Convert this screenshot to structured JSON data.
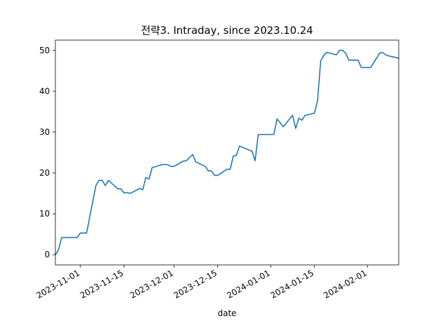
{
  "chart_data": {
    "type": "line",
    "title": "전략3. Intraday, since 2023.10.24",
    "xlabel": "date",
    "ylabel": "",
    "xlim": [
      "2023-10-24",
      "2024-02-11"
    ],
    "ylim": [
      -2.5,
      52.5
    ],
    "grid": false,
    "line_color": "#1f77b4",
    "x_ticks": [
      "2023-11-01",
      "2023-11-15",
      "2023-12-01",
      "2023-12-15",
      "2024-01-01",
      "2024-01-15",
      "2024-02-01"
    ],
    "y_ticks": [
      0,
      10,
      20,
      30,
      40,
      50
    ],
    "series": [
      {
        "x": [
          "2023-10-24",
          "2023-10-25",
          "2023-10-26",
          "2023-10-27",
          "2023-10-30",
          "2023-10-31",
          "2023-11-01",
          "2023-11-02",
          "2023-11-03",
          "2023-11-06",
          "2023-11-07",
          "2023-11-08",
          "2023-11-09",
          "2023-11-10",
          "2023-11-13",
          "2023-11-14",
          "2023-11-15",
          "2023-11-16",
          "2023-11-17",
          "2023-11-20",
          "2023-11-21",
          "2023-11-22",
          "2023-11-23",
          "2023-11-24",
          "2023-11-27",
          "2023-11-28",
          "2023-11-29",
          "2023-11-30",
          "2023-12-01",
          "2023-12-04",
          "2023-12-05",
          "2023-12-06",
          "2023-12-07",
          "2023-12-08",
          "2023-12-11",
          "2023-12-12",
          "2023-12-13",
          "2023-12-14",
          "2023-12-15",
          "2023-12-18",
          "2023-12-19",
          "2023-12-20",
          "2023-12-21",
          "2023-12-22",
          "2023-12-26",
          "2023-12-27",
          "2023-12-28",
          "2024-01-02",
          "2024-01-03",
          "2024-01-04",
          "2024-01-05",
          "2024-01-08",
          "2024-01-09",
          "2024-01-10",
          "2024-01-11",
          "2024-01-12",
          "2024-01-15",
          "2024-01-16",
          "2024-01-17",
          "2024-01-18",
          "2024-01-19",
          "2024-01-22",
          "2024-01-23",
          "2024-01-24",
          "2024-01-25",
          "2024-01-26",
          "2024-01-29",
          "2024-01-30",
          "2024-01-31",
          "2024-02-01",
          "2024-02-02",
          "2024-02-05",
          "2024-02-06",
          "2024-02-07",
          "2024-02-08",
          "2024-02-11"
        ],
        "y": [
          0,
          1.2,
          4.2,
          4.2,
          4.2,
          4.2,
          5.3,
          5.3,
          5.3,
          17,
          18.2,
          18.2,
          16.9,
          18.2,
          16.1,
          16.1,
          15.1,
          15.2,
          15,
          16.2,
          15.9,
          18.9,
          18.5,
          21.3,
          22,
          22.1,
          22,
          21.6,
          21.6,
          22.9,
          23,
          23.8,
          24.5,
          22.7,
          21.6,
          20.5,
          20.5,
          19.4,
          19.4,
          20.9,
          20.9,
          24.1,
          24.3,
          26.6,
          25.3,
          23,
          29.4,
          29.4,
          33.2,
          32.3,
          31.3,
          34.1,
          30.9,
          33.4,
          32.9,
          34.1,
          34.6,
          37.7,
          47.4,
          48.8,
          49.5,
          48.9,
          50,
          50,
          49.3,
          47.6,
          47.6,
          45.8,
          45.8,
          45.8,
          45.8,
          49.4,
          49.4,
          48.8,
          48.6,
          48.1
        ]
      }
    ]
  }
}
